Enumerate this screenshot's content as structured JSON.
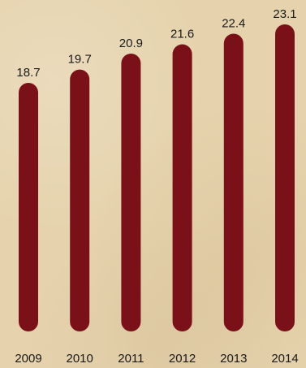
{
  "chart_data": {
    "type": "bar",
    "categories": [
      "2009",
      "2010",
      "2011",
      "2012",
      "2013",
      "2014"
    ],
    "values": [
      18.7,
      19.7,
      20.9,
      21.6,
      22.4,
      23.1
    ],
    "value_labels": [
      "18.7",
      "19.7",
      "20.9",
      "21.6",
      "22.4",
      "23.1"
    ],
    "title": "",
    "xlabel": "",
    "ylabel": "",
    "ylim": [
      0,
      23.1
    ],
    "grid": false,
    "bar_color": "#7a1119",
    "background_color": "#e6d3ad"
  }
}
